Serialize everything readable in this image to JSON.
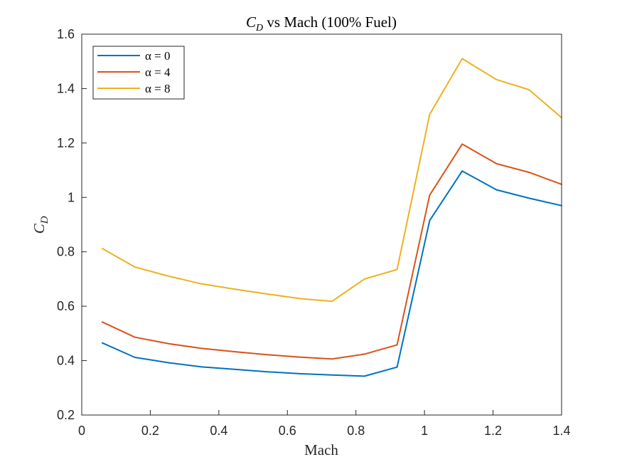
{
  "chart_data": {
    "type": "line",
    "title": "C_D vs Mach (100% Fuel)",
    "xlabel": "Mach",
    "ylabel": "C_D",
    "xlim": [
      0,
      1.4
    ],
    "ylim": [
      0.2,
      1.6
    ],
    "xticks": [
      0,
      0.2,
      0.4,
      0.6,
      0.8,
      1,
      1.2,
      1.4
    ],
    "xtick_labels": [
      "0",
      "0.2",
      "0.4",
      "0.6",
      "0.8",
      "1",
      "1.2",
      "1.4"
    ],
    "yticks": [
      0.2,
      0.4,
      0.6,
      0.8,
      1,
      1.2,
      1.4,
      1.6
    ],
    "ytick_labels": [
      "0.2",
      "0.4",
      "0.6",
      "0.8",
      "1",
      "1.2",
      "1.4",
      "1.6"
    ],
    "grid": false,
    "legend_position": "top-left",
    "x": [
      0.06,
      0.155,
      0.255,
      0.35,
      0.445,
      0.54,
      0.635,
      0.73,
      0.825,
      0.92,
      1.015,
      1.11,
      1.21,
      1.305,
      1.4
    ],
    "series": [
      {
        "name": "α = 0",
        "color": "#0072BD",
        "values": [
          0.465,
          0.412,
          0.392,
          0.377,
          0.368,
          0.359,
          0.352,
          0.347,
          0.343,
          0.376,
          0.915,
          1.097,
          1.028,
          0.997,
          0.97
        ]
      },
      {
        "name": "α = 4",
        "color": "#D95319",
        "values": [
          0.542,
          0.486,
          0.462,
          0.445,
          0.433,
          0.422,
          0.413,
          0.406,
          0.424,
          0.458,
          1.008,
          1.196,
          1.124,
          1.092,
          1.048
        ]
      },
      {
        "name": "α = 8",
        "color": "#EDB120",
        "values": [
          0.812,
          0.744,
          0.71,
          0.682,
          0.663,
          0.645,
          0.628,
          0.618,
          0.7,
          0.735,
          1.305,
          1.51,
          1.433,
          1.396,
          1.293
        ]
      }
    ]
  }
}
